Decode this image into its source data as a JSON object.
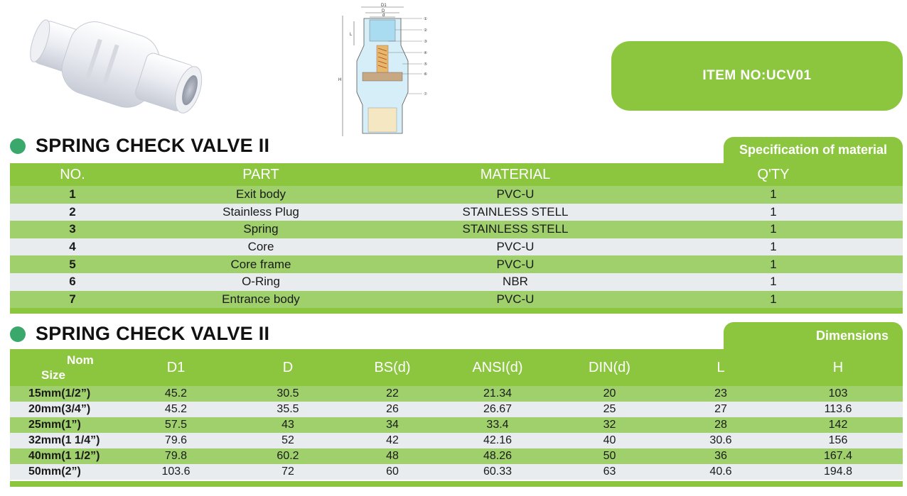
{
  "item": {
    "label": "ITEM NO:UCV01"
  },
  "section1": {
    "title": "SPRING CHECK VALVE II",
    "tab": "Specification of material"
  },
  "material_table": {
    "headers": [
      "NO.",
      "PART",
      "MATERIAL",
      "Q'TY"
    ],
    "rows": [
      {
        "no": "1",
        "part": "Exit body",
        "material": "PVC-U",
        "qty": "1"
      },
      {
        "no": "2",
        "part": "Stainless Plug",
        "material": "STAINLESS STELL",
        "qty": "1"
      },
      {
        "no": "3",
        "part": "Spring",
        "material": "STAINLESS STELL",
        "qty": "1"
      },
      {
        "no": "4",
        "part": "Core",
        "material": "PVC-U",
        "qty": "1"
      },
      {
        "no": "5",
        "part": "Core frame",
        "material": "PVC-U",
        "qty": "1"
      },
      {
        "no": "6",
        "part": "O-Ring",
        "material": "NBR",
        "qty": "1"
      },
      {
        "no": "7",
        "part": "Entrance body",
        "material": "PVC-U",
        "qty": "1"
      }
    ]
  },
  "section2": {
    "title": "SPRING CHECK VALVE II",
    "tab": "Dimensions"
  },
  "dimension_table": {
    "nom": "Nom",
    "size": "Size",
    "headers": [
      "D1",
      "D",
      "BS(d)",
      "ANSI(d)",
      "DIN(d)",
      "L",
      "H"
    ],
    "rows": [
      {
        "size": "15mm(1/2”)",
        "d1": "45.2",
        "d": "30.5",
        "bs": "22",
        "ansi": "21.34",
        "din": "20",
        "l": "23",
        "h": "103"
      },
      {
        "size": "20mm(3/4”)",
        "d1": "45.2",
        "d": "35.5",
        "bs": "26",
        "ansi": "26.67",
        "din": "25",
        "l": "27",
        "h": "113.6"
      },
      {
        "size": "25mm(1”)",
        "d1": "57.5",
        "d": "43",
        "bs": "34",
        "ansi": "33.4",
        "din": "32",
        "l": "28",
        "h": "142"
      },
      {
        "size": "32mm(1 1/4”)",
        "d1": "79.6",
        "d": "52",
        "bs": "42",
        "ansi": "42.16",
        "din": "40",
        "l": "30.6",
        "h": "156"
      },
      {
        "size": "40mm(1 1/2”)",
        "d1": "79.8",
        "d": "60.2",
        "bs": "48",
        "ansi": "48.26",
        "din": "50",
        "l": "36",
        "h": "167.4"
      },
      {
        "size": "50mm(2”)",
        "d1": "103.6",
        "d": "72",
        "bs": "60",
        "ansi": "60.33",
        "din": "63",
        "l": "40.6",
        "h": "194.8"
      }
    ]
  },
  "diagram": {
    "dim_labels": [
      "D1",
      "D",
      "d",
      "L",
      "H"
    ],
    "callouts": [
      "①",
      "②",
      "③",
      "④",
      "⑤",
      "⑥",
      "⑦"
    ]
  },
  "colors": {
    "accent": "#8cc63f",
    "row_green": "#9fd06b",
    "row_grey": "#e8ecef",
    "bullet": "#3aa86b"
  }
}
